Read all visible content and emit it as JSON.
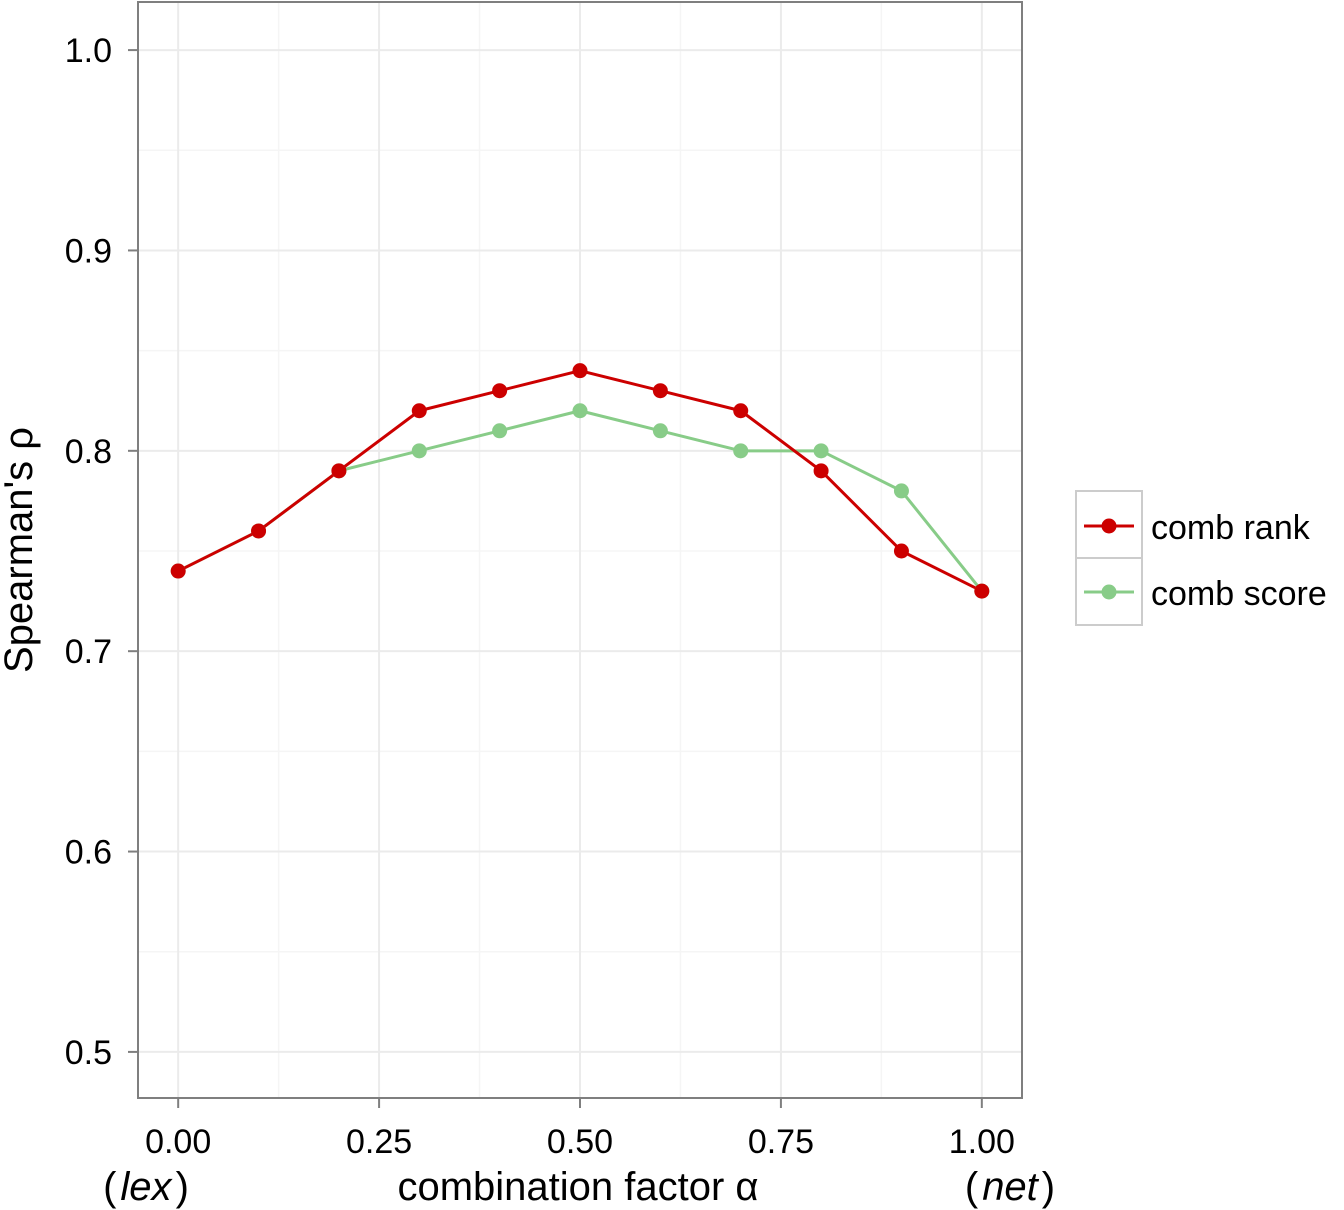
{
  "chart_data": {
    "type": "line",
    "title": "",
    "xlabel": "combination factor α",
    "ylabel": "Spearman's ρ",
    "x_end_labels": {
      "left_open": "(",
      "left_word": "lex",
      "left_close": ")",
      "right_open": "(",
      "right_word": "net",
      "right_close": ")"
    },
    "x": [
      0.0,
      0.1,
      0.2,
      0.3,
      0.4,
      0.5,
      0.6,
      0.7,
      0.8,
      0.9,
      1.0
    ],
    "xlim": [
      -0.05,
      1.05
    ],
    "ylim": [
      0.477,
      1.024
    ],
    "x_ticks": [
      0.0,
      0.25,
      0.5,
      0.75,
      1.0
    ],
    "x_tick_labels": [
      "0.00",
      "0.25",
      "0.50",
      "0.75",
      "1.00"
    ],
    "y_ticks": [
      0.5,
      0.6,
      0.7,
      0.8,
      0.9,
      1.0
    ],
    "y_tick_labels": [
      "0.5",
      "0.6",
      "0.7",
      "0.8",
      "0.9",
      "1.0"
    ],
    "grid": true,
    "legend_position": "right",
    "series": [
      {
        "name": "comb rank",
        "color": "#cc0000",
        "values": [
          0.74,
          0.76,
          0.79,
          0.82,
          0.83,
          0.84,
          0.83,
          0.82,
          0.79,
          0.75,
          0.73
        ]
      },
      {
        "name": "comb score",
        "color": "#88cc88",
        "values": [
          0.74,
          0.76,
          0.79,
          0.8,
          0.81,
          0.82,
          0.81,
          0.8,
          0.8,
          0.78,
          0.73
        ]
      }
    ],
    "draw_order": [
      1,
      0
    ]
  },
  "colors": {
    "panel_border": "#7f7f7f",
    "grid_major": "#ebebeb",
    "grid_minor": "#f5f5f5",
    "tick": "#7f7f7f",
    "legend_border": "#cccccc"
  }
}
